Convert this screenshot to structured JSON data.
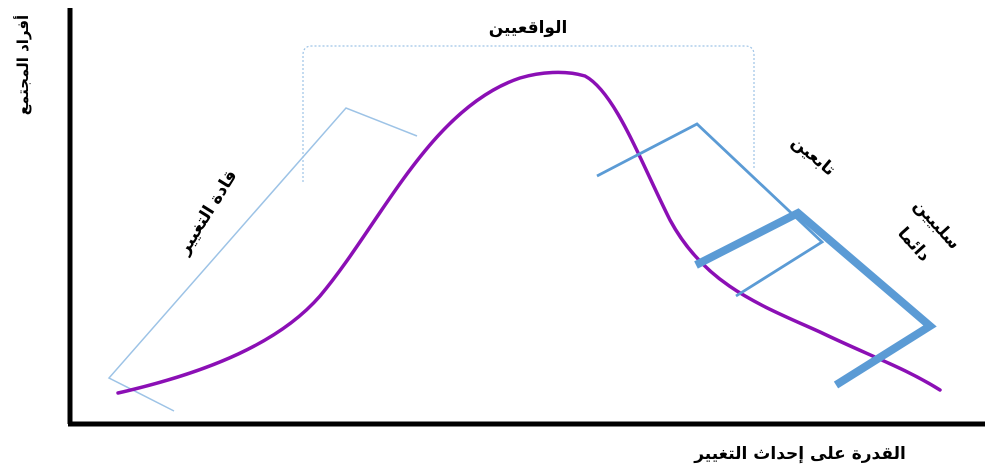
{
  "diagram": {
    "y_axis_label": "أفراد المجتمع",
    "x_axis_label": "القدرة على إحداث التغيير",
    "groups": {
      "realists": "الواقعيين",
      "change_leaders": "قادة التغيير",
      "followers": "تابعين",
      "always_negative_line1": "سلبيين",
      "always_negative_line2": "دائما"
    },
    "colors": {
      "distribution_curve": "#8B0FB5",
      "group_brackets": "#5B9BD5",
      "realists_bracket": "#9DC3E6",
      "axes": "#000000"
    }
  }
}
